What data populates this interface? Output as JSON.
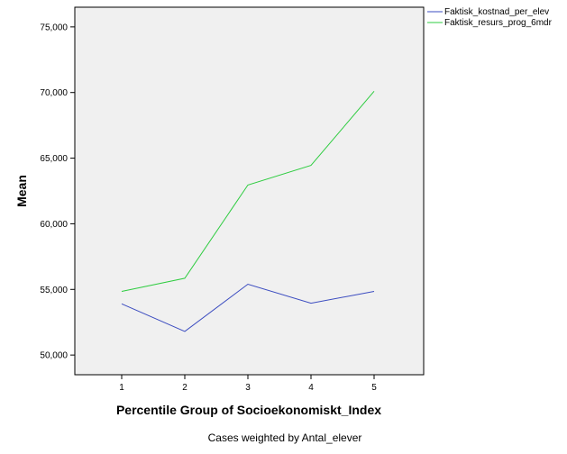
{
  "chart_data": {
    "type": "line",
    "title": "",
    "xlabel": "Percentile Group of Socioekonomiskt_Index",
    "ylabel": "Mean",
    "footnote": "Cases weighted by Antal_elever",
    "categories": [
      "1",
      "2",
      "3",
      "4",
      "5"
    ],
    "ylim": [
      48500,
      76500
    ],
    "yticks": [
      50000,
      55000,
      60000,
      65000,
      70000,
      75000
    ],
    "ytick_labels": [
      "50,000",
      "55,000",
      "60,000",
      "65,000",
      "70,000",
      "75,000"
    ],
    "grid": false,
    "legend_position": "top-right",
    "plot_background": "#f0f0f0",
    "series": [
      {
        "name": "Faktisk_kostnad_per_elev",
        "color": "#3b4cc0",
        "values": [
          53900,
          51800,
          55400,
          53950,
          54850
        ]
      },
      {
        "name": "Faktisk_resurs_prog_6mdr",
        "color": "#2ecc40",
        "values": [
          54850,
          55850,
          62950,
          64450,
          70100
        ]
      }
    ]
  }
}
